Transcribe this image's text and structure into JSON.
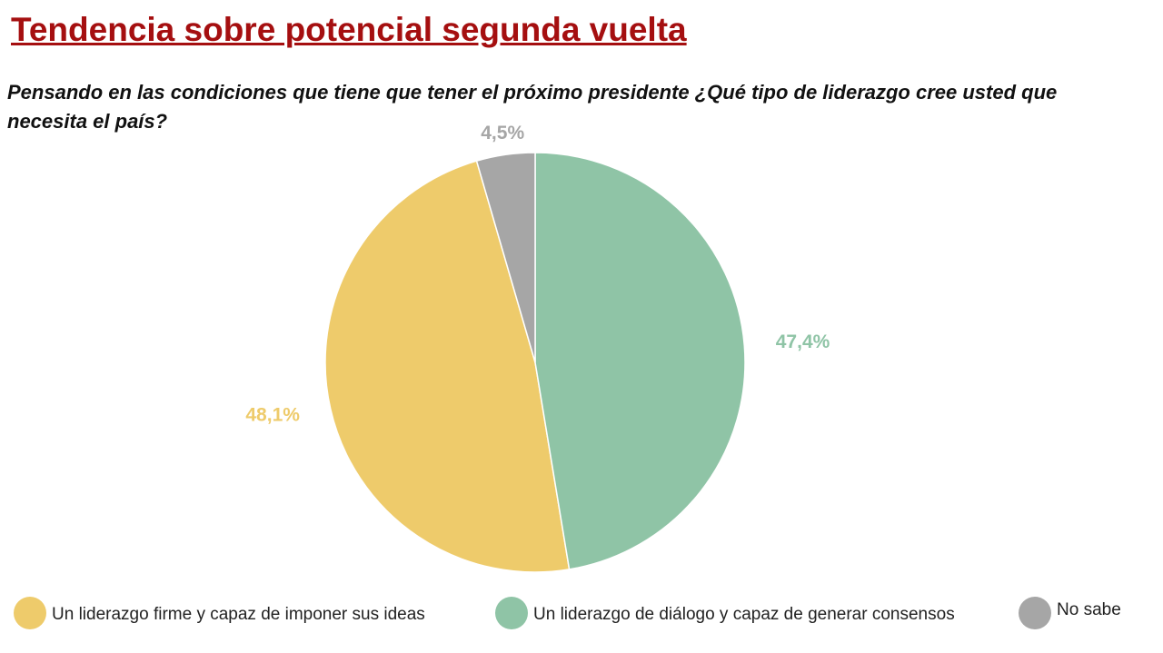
{
  "chart_data": {
    "type": "pie",
    "title": "Tendencia sobre potencial segunda vuelta",
    "subtitle": "Pensando en las condiciones que tiene que tener el próximo presidente ¿Qué tipo de liderazgo cree usted que necesita el país?",
    "categories": [
      "Un liderazgo firme y capaz de imponer sus ideas",
      "Un liderazgo de diálogo y capaz de generar consensos",
      "No sabe"
    ],
    "values": [
      48.1,
      47.4,
      4.5
    ],
    "value_labels": [
      "48,1%",
      "47,4%",
      "4,5%"
    ],
    "colors": [
      "#eecb6b",
      "#8fc4a6",
      "#a6a6a6"
    ]
  }
}
